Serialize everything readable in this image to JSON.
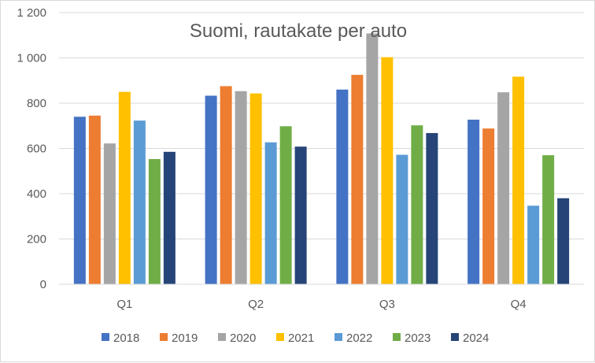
{
  "chart_data": {
    "type": "bar",
    "title": "Suomi, rautakate per auto",
    "xlabel": "",
    "ylabel": "",
    "categories": [
      "Q1",
      "Q2",
      "Q3",
      "Q4"
    ],
    "ylim": [
      0,
      1200
    ],
    "yticks": [
      0,
      200,
      400,
      600,
      800,
      1000,
      1200
    ],
    "ytick_labels": [
      "0",
      "200",
      "400",
      "600",
      "800",
      "1 000",
      "1 200"
    ],
    "grid": true,
    "legend_position": "bottom",
    "series": [
      {
        "name": "2018",
        "color": "#4472C4",
        "values": [
          740,
          833,
          860,
          727
        ]
      },
      {
        "name": "2019",
        "color": "#ED7D31",
        "values": [
          745,
          875,
          925,
          688
        ]
      },
      {
        "name": "2020",
        "color": "#A5A5A5",
        "values": [
          622,
          853,
          1108,
          848
        ]
      },
      {
        "name": "2021",
        "color": "#FFC000",
        "values": [
          850,
          843,
          1003,
          917
        ]
      },
      {
        "name": "2022",
        "color": "#5B9BD5",
        "values": [
          723,
          627,
          572,
          347
        ]
      },
      {
        "name": "2023",
        "color": "#70AD47",
        "values": [
          553,
          698,
          702,
          570
        ]
      },
      {
        "name": "2024",
        "color": "#264478",
        "values": [
          585,
          608,
          668,
          380
        ]
      }
    ]
  }
}
